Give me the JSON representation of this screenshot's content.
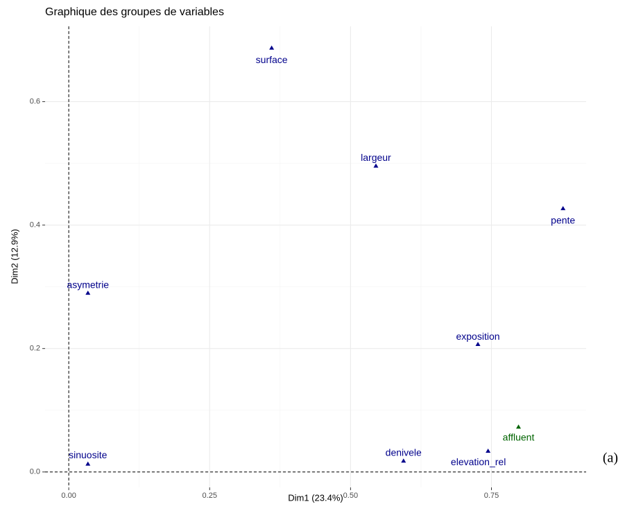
{
  "chart_data": {
    "type": "scatter",
    "title": "Graphique des groupes de variables",
    "x_label": "Dim1 (23.4%)",
    "y_label": "Dim2 (12.9%)",
    "points": [
      {
        "label": "surface",
        "x": 0.36,
        "y": 0.687,
        "color": "#00008b"
      },
      {
        "label": "largeur",
        "x": 0.545,
        "y": 0.496,
        "color": "#00008b"
      },
      {
        "label": "pente",
        "x": 0.877,
        "y": 0.427,
        "color": "#00008b"
      },
      {
        "label": "asymetrie",
        "x": 0.034,
        "y": 0.29,
        "color": "#00008b"
      },
      {
        "label": "exposition",
        "x": 0.726,
        "y": 0.207,
        "color": "#00008b"
      },
      {
        "label": "affluent",
        "x": 0.798,
        "y": 0.073,
        "color": "#006400"
      },
      {
        "label": "elevation_rel",
        "x": 0.744,
        "y": 0.034,
        "color": "#00008b"
      },
      {
        "label": "denivele",
        "x": 0.594,
        "y": 0.018,
        "color": "#00008b"
      },
      {
        "label": "sinuosite",
        "x": 0.034,
        "y": 0.013,
        "color": "#00008b"
      }
    ],
    "xlim": [
      -0.042,
      0.918
    ],
    "ylim": [
      -0.025,
      0.722
    ],
    "xticks": [
      {
        "value": 0,
        "label": "0.00"
      },
      {
        "value": 0.25,
        "label": "0.25"
      },
      {
        "value": 0.5,
        "label": "0.50"
      },
      {
        "value": 0.75,
        "label": "0.75"
      }
    ],
    "yticks": [
      {
        "value": 0,
        "label": "0.0"
      },
      0.2,
      0.4,
      0.6
    ],
    "reference_lines": {
      "x": 0,
      "y": 0
    },
    "grid": true,
    "annotation": "(a)"
  }
}
